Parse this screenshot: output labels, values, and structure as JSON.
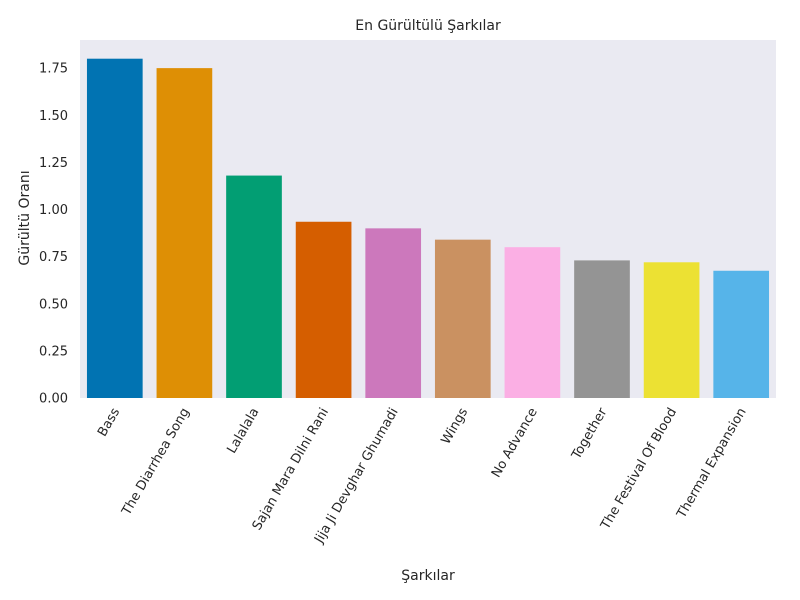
{
  "chart_data": {
    "type": "bar",
    "title": "En Gürültülü Şarkılar",
    "xlabel": "Şarkılar",
    "ylabel": "Gürültü Oranı",
    "categories": [
      "Bass",
      "The Diarrhea Song",
      "Lalalala",
      "Sajan Mara Dilni Rani",
      "Jija Ji Devghar Ghumadi",
      "Wings",
      "No Advance",
      "Together",
      "The Festival Of Blood",
      "Thermal Expansion"
    ],
    "values": [
      1.8,
      1.75,
      1.18,
      0.935,
      0.9,
      0.84,
      0.8,
      0.73,
      0.72,
      0.675
    ],
    "colors": [
      "#0173b2",
      "#de8f05",
      "#029e73",
      "#d55e00",
      "#cc78bc",
      "#ca9161",
      "#fbafe4",
      "#949494",
      "#ece133",
      "#56b4e9"
    ],
    "yticks": [
      "0.00",
      "0.25",
      "0.50",
      "0.75",
      "1.00",
      "1.25",
      "1.50",
      "1.75"
    ],
    "ylim": [
      0,
      1.8
    ],
    "grid": false,
    "background": "#eaeaf2"
  }
}
